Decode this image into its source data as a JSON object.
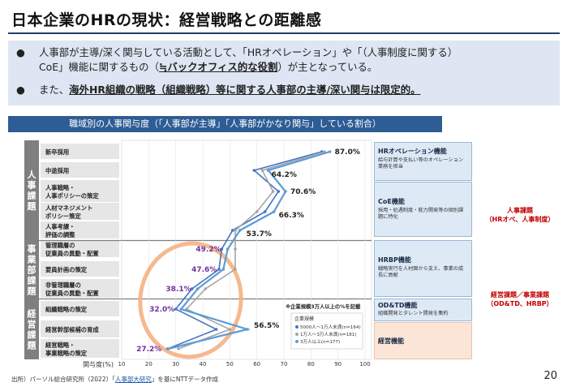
{
  "title": "日本企業のHRの現状：経営戦略との距離感",
  "bullets": [
    {
      "line1": "人事部が主導/深く関与している活動として、「HRオペレーション」や「（人事制度に関する）",
      "line2_a": "CoE」機能に関するもの（",
      "line2_u": "≒バックオフィス的な役割",
      "line2_b": "）が主となっている。"
    },
    {
      "a": "また、",
      "u": "海外HR組織の戦略（組織戦略）等に関する人事部の主導/深い関与は限定的。"
    }
  ],
  "chart_header": "職域別の人事関与度（「人事部が主導」「人事部がかなり関与」している割合）",
  "groups": [
    {
      "label": "人事課題"
    },
    {
      "label": "事業部課題"
    },
    {
      "label": "経営課題"
    }
  ],
  "right_boxes": [
    {
      "title": "HRオペレーション機能",
      "desc": "給与計算や支払い等のオペレーション業務を担当"
    },
    {
      "title": "CoE機能",
      "desc": "採用・処遇制度・能力開発等の個別課題に特化"
    },
    {
      "title": "HRBP機能",
      "desc": "戦略実行を人材面から支え、事業の成長に貢献"
    },
    {
      "title": "OD&TD機能",
      "desc": "組織開発とタレント開発を集約"
    },
    {
      "title": "経営機能",
      "desc": ""
    }
  ],
  "side_labels": [
    {
      "line1": "人事課題",
      "line2": "（HRオペ、人事制度）"
    },
    {
      "line1": "経営課題／事業課題",
      "line2": "（OD&TD、HRBP）"
    }
  ],
  "chart_data": {
    "type": "line",
    "orientation": "horizontal",
    "categories": [
      "新卒採用",
      "中途採用",
      "人事戦略・\n人事ポリシーの策定",
      "人材マネジメント\nポリシー策定",
      "人事考課・\n評価の調整",
      "管理職層の\n従業員の異動・配置",
      "要員計画の策定",
      "非管理職層の\n従業員の異動・配置",
      "組織戦略の策定",
      "経営幹部候補の育成",
      "経営戦略・\n事業戦略の策定"
    ],
    "xlabel": "関与度(%)",
    "xlim": [
      10,
      100
    ],
    "xticks": [
      10,
      20,
      30,
      40,
      50,
      60,
      70,
      80,
      90,
      100
    ],
    "data_labels": [
      "87.0%",
      "64.2%",
      "70.6%",
      "66.3%",
      "53.7%",
      "49.2%",
      "47.6%",
      "38.1%",
      "32.0%",
      "56.5%",
      "27.2%"
    ],
    "highlight_labels_index": [
      5,
      6,
      7,
      8,
      10
    ],
    "legend_title": "企業規模",
    "legend_note": "※企業規模3万人以上の%を記載",
    "series": [
      {
        "name": "5000人～1万人未満(n=164)",
        "color": "#4472c4",
        "values": [
          84,
          59,
          68,
          63,
          51,
          47,
          46,
          36,
          30,
          45,
          27
        ]
      },
      {
        "name": "1万人～3万人未満(n=181)",
        "color": "#a5a5a5",
        "values": [
          85,
          62,
          66,
          60,
          52,
          52,
          52,
          41,
          34,
          50,
          31
        ]
      },
      {
        "name": "3万人以上(n=177)",
        "color": "#5b9bd5",
        "values": [
          87.0,
          64.2,
          70.6,
          66.3,
          53.7,
          49.2,
          47.6,
          38.1,
          32.0,
          56.5,
          27.2
        ]
      }
    ]
  },
  "footer": {
    "a": "出所）パーソル総合研究所（2022）「",
    "link": "人事部大研究",
    "b": "」を基にNTTデータ作成"
  },
  "page_number": "20"
}
